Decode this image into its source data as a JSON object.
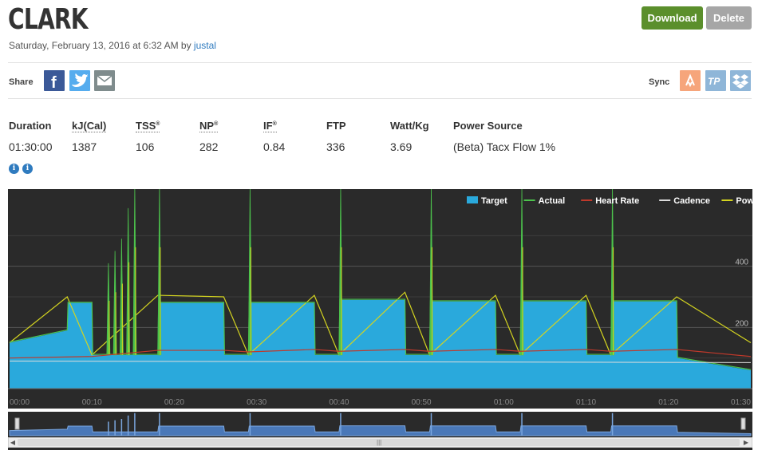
{
  "header": {
    "title": "CLARK",
    "date_text": "Saturday, February 13, 2016 at 6:32 AM by ",
    "author": "justal",
    "download_label": "Download",
    "delete_label": "Delete"
  },
  "share": {
    "label": "Share",
    "icons": [
      "facebook-icon",
      "twitter-icon",
      "email-icon"
    ],
    "colors": {
      "facebook": "#3b5998",
      "twitter": "#55acee",
      "email": "#7f8c8d"
    }
  },
  "sync": {
    "label": "Sync",
    "icons": [
      "strava-icon",
      "trainingpeaks-icon",
      "dropbox-icon"
    ],
    "colors": {
      "strava": "#f6a57b",
      "trainingpeaks": "#8fb6d8",
      "dropbox": "#8fb6d8"
    }
  },
  "stats": [
    {
      "label": "Duration",
      "value": "01:30:00"
    },
    {
      "label": "kJ(Cal)",
      "value": "1387"
    },
    {
      "label": "TSS",
      "value": "106",
      "mark": "®"
    },
    {
      "label": "NP",
      "value": "282",
      "mark": "®"
    },
    {
      "label": "IF",
      "value": "0.84",
      "mark": "®"
    },
    {
      "label": "FTP",
      "value": "336"
    },
    {
      "label": "Watt/Kg",
      "value": "3.69"
    },
    {
      "label": "Power Source",
      "value": "(Beta) Tacx Flow 1%"
    }
  ],
  "info_icons": [
    "i",
    "i"
  ],
  "chart_data": {
    "type": "area",
    "legend": [
      "Target",
      "Actual",
      "Heart Rate",
      "Cadence",
      "Power"
    ],
    "legend_position": "top-right",
    "colors": {
      "Target": "#2aa9dc",
      "Actual": "#4cc24c",
      "Heart Rate": "#c0392b",
      "Cadence": "#dcdcdc",
      "Power": "#d4d420",
      "background": "#2a2a2a"
    },
    "x_ticks": [
      "00:00",
      "00:10",
      "00:20",
      "00:30",
      "00:40",
      "00:50",
      "01:00",
      "01:10",
      "01:20",
      "01:30"
    ],
    "y_ticks": [
      {
        "value": 200,
        "label": "200"
      },
      {
        "value": 400,
        "label": "400"
      }
    ],
    "x_range_min": [
      0,
      90
    ],
    "y_range_w": [
      0,
      600
    ],
    "series": [
      {
        "name": "Target",
        "x": [
          0,
          7,
          7.1,
          10,
          10.1,
          18,
          18.1,
          26,
          26.1,
          29,
          29.1,
          37,
          37.1,
          40,
          40.1,
          48,
          48.1,
          51,
          51.1,
          59,
          59.1,
          62,
          62.1,
          70,
          70.1,
          73,
          73.1,
          81,
          81.1,
          90
        ],
        "values": [
          150,
          190,
          280,
          280,
          110,
          110,
          280,
          280,
          110,
          110,
          280,
          280,
          110,
          110,
          290,
          290,
          110,
          110,
          285,
          285,
          110,
          110,
          285,
          285,
          110,
          110,
          285,
          285,
          100,
          60
        ]
      },
      {
        "name": "Actual",
        "x": [
          12,
          12.8,
          13.6,
          14.4,
          15.2,
          18.2,
          29.2,
          40.2,
          51.2,
          62.2,
          73.2
        ],
        "values": [
          410,
          450,
          490,
          590,
          660,
          660,
          660,
          660,
          660,
          660,
          660
        ]
      },
      {
        "name": "Heart Rate",
        "x": [
          0,
          10,
          18,
          26,
          29,
          37,
          40,
          48,
          51,
          59,
          62,
          70,
          73,
          81,
          90
        ],
        "values": [
          100,
          105,
          125,
          125,
          120,
          128,
          122,
          128,
          122,
          128,
          122,
          128,
          122,
          128,
          105
        ]
      },
      {
        "name": "Cadence",
        "x": [
          0,
          90
        ],
        "values": [
          90,
          85
        ]
      },
      {
        "name": "Power",
        "x": [
          0,
          7,
          10,
          18,
          26,
          29,
          37,
          40,
          48,
          51,
          59,
          62,
          70,
          73,
          81,
          90
        ],
        "values": [
          150,
          300,
          110,
          305,
          300,
          110,
          305,
          110,
          315,
          110,
          305,
          110,
          305,
          110,
          300,
          150
        ]
      }
    ]
  }
}
